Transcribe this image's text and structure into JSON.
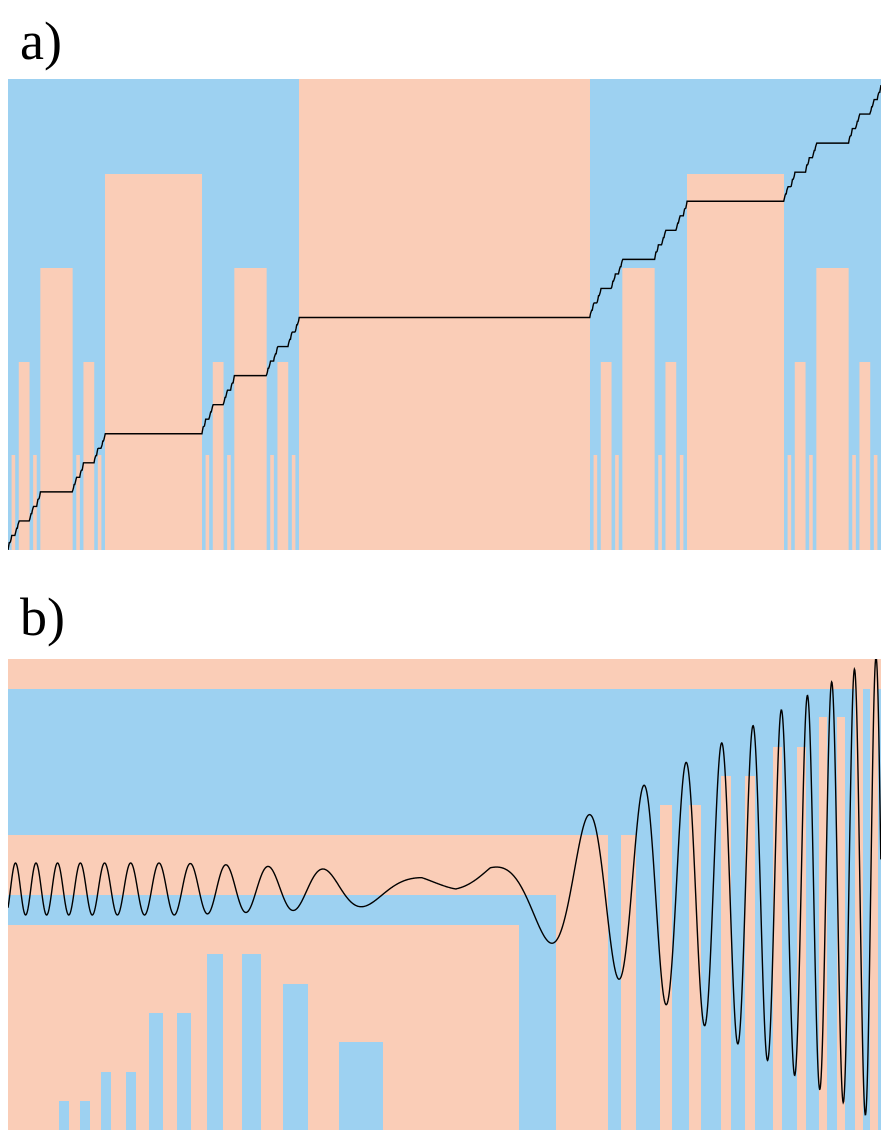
{
  "colors": {
    "blue": "#9DD1F1",
    "peach": "#FACDB7",
    "curve": "#000000"
  },
  "panels": [
    {
      "id": "a",
      "label": "a)"
    },
    {
      "id": "b",
      "label": "b)"
    }
  ]
}
